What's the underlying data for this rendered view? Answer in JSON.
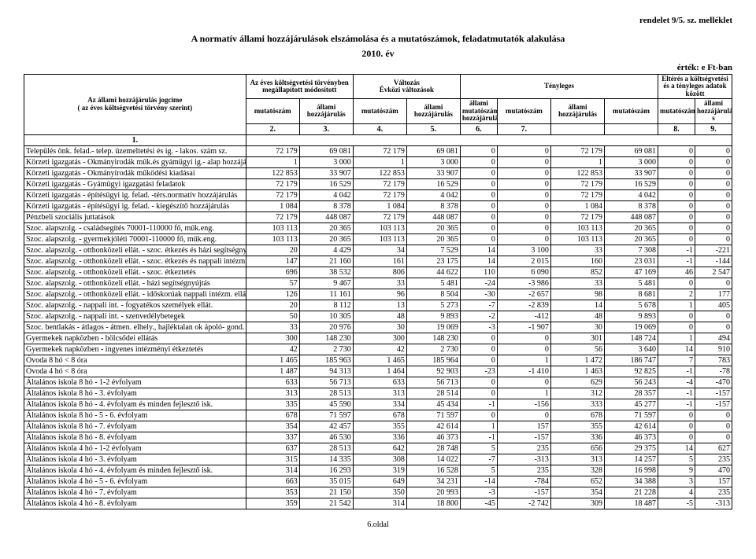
{
  "meta": {
    "top_right": "rendelet 9/5. sz. melléklet",
    "title1": "A normatív állami hozzájárulások elszámolása és a mutatószámok, feladatmutatók alakulása",
    "title2": "2010. év",
    "ertek": "érték: e Ft-ban",
    "footer": "6.oldal"
  },
  "header": {
    "left1": "Az állami hozzájárulás jogcíme",
    "left2": "( az éves költségvetési törvény szerint)",
    "left3": "1.",
    "g1": "Az éves költségvetési törvényben megállapított módosított",
    "g1a": "mutatószám",
    "g1b": "állami hozzájárulás",
    "g1na": "2.",
    "g1nb": "3.",
    "g2": "Változás",
    "g2sub": "Évközi változások",
    "g2a": "mutatószám",
    "g2b": "állami hozzájárulás",
    "g2na": "4.",
    "g2nb": "5.",
    "g3": "Tényleges",
    "g3a": "mutatószám",
    "g3sub": "állami mutatószám hozzájárulás",
    "g3b": "állami hozzájárulás",
    "g3c": "mutatószám",
    "g3na": "6.",
    "g3nb": "7.",
    "g4": "Eltérés a költségvetési és a tényleges adatok között",
    "g4a": "mutatószám",
    "g4b": "állami hozzájárulá s",
    "g4na": "8.",
    "g4nb": "9."
  },
  "rows": [
    {
      "label": "Település önk. felad.- telep. üzemeltetési és ig. - lakos. szám sz.",
      "c": [
        "72 179",
        "69 081",
        "72 179",
        "69 081",
        "0",
        "0",
        "72 179",
        "69 081",
        "0",
        "0"
      ]
    },
    {
      "label": "Körzeti igazgatás - Okmányirodák műk.és gyámügyi ig.- alap hozzájár.",
      "c": [
        "1",
        "3 000",
        "1",
        "3 000",
        "0",
        "0",
        "1",
        "3 000",
        "0",
        "0"
      ]
    },
    {
      "label": "Körzeti igazgatás - Okmányirodák működési kiadásai",
      "c": [
        "122 853",
        "33 907",
        "122 853",
        "33 907",
        "0",
        "0",
        "122 853",
        "33 907",
        "0",
        "0"
      ]
    },
    {
      "label": "Körzeti igazgatás - Gyámügyi igazgatási feladatok",
      "c": [
        "72 179",
        "16 529",
        "72 179",
        "16 529",
        "0",
        "0",
        "72 179",
        "16 529",
        "0",
        "0"
      ]
    },
    {
      "label": "Körzeti igazgatás - építésügyi ig. felad. -térs.normatív hozzájárulás",
      "c": [
        "72 179",
        "4 042",
        "72 179",
        "4 042",
        "0",
        "0",
        "72 179",
        "4 042",
        "0",
        "0"
      ]
    },
    {
      "label": "Körzeti igazgatás - építésügyi ig. felad. - kiegészítő hozzájárulás",
      "c": [
        "1 084",
        "8 378",
        "1 084",
        "8 378",
        "0",
        "0",
        "1 084",
        "8 378",
        "0",
        "0"
      ]
    },
    {
      "label": "Pénzbeli szociális juttatások",
      "c": [
        "72 179",
        "448 087",
        "72 179",
        "448 087",
        "0",
        "0",
        "72 179",
        "448 087",
        "0",
        "0"
      ]
    },
    {
      "label": "Szoc. alapszolg. - családsegítés 70001-110000 fő, műk.eng.",
      "c": [
        "103 113",
        "20 365",
        "103 113",
        "20 365",
        "0",
        "0",
        "103 113",
        "20 365",
        "0",
        "0"
      ]
    },
    {
      "label": "Szoc. alapszolg. - gyermekjóléti 70001-110000 fő, műk.eng.",
      "c": [
        "103 113",
        "20 365",
        "103 113",
        "20 365",
        "0",
        "0",
        "103 113",
        "20 365",
        "0",
        "0"
      ]
    },
    {
      "label": "Szoc. alapszolg. - otthonközeli ellát. - szoc. étkezés és házi segítségnyújtás",
      "c": [
        "20",
        "4 429",
        "34",
        "7 529",
        "14",
        "3 100",
        "33",
        "7 308",
        "-1",
        "-221"
      ]
    },
    {
      "label": "Szoc. alapszolg. - otthonközeli ellát. - szoc. étkezés és nappali intézm. ellát.",
      "c": [
        "147",
        "21 160",
        "161",
        "23 175",
        "14",
        "2 015",
        "160",
        "23 031",
        "-1",
        "-144"
      ]
    },
    {
      "label": "Szoc. alapszolg. - otthonközeli ellát. - szoc. étkeztetés",
      "c": [
        "696",
        "38 532",
        "806",
        "44 622",
        "110",
        "6 090",
        "852",
        "47 169",
        "46",
        "2 547"
      ]
    },
    {
      "label": "Szoc. alapszolg. - otthonközeli ellát. - házi segítségnyújtás",
      "c": [
        "57",
        "9 467",
        "33",
        "5 481",
        "-24",
        "-3 986",
        "33",
        "5 481",
        "0",
        "0"
      ]
    },
    {
      "label": "Szoc. alapszolg. - otthonközeli ellát. - időskorúak nappali intézm. ellát.",
      "c": [
        "126",
        "11 161",
        "96",
        "8 504",
        "-30",
        "-2 657",
        "98",
        "8 681",
        "2",
        "177"
      ]
    },
    {
      "label": "Szoc. alapszolg. - nappali int. - fogyatékos személyek ellát.",
      "c": [
        "20",
        "8 112",
        "13",
        "5 273",
        "-7",
        "-2 839",
        "14",
        "5 678",
        "1",
        "405"
      ]
    },
    {
      "label": "Szoc. alapszolg. - nappali int. - szenvedélybetegek",
      "c": [
        "50",
        "10 305",
        "48",
        "9 893",
        "-2",
        "-412",
        "48",
        "9 893",
        "0",
        "0"
      ]
    },
    {
      "label": "Szoc. bentlakás - átlagos - átmen. elhely., hajléktalan ok ápoló- gond. ellátása",
      "c": [
        "33",
        "20 976",
        "30",
        "19 069",
        "-3",
        "-1 907",
        "30",
        "19 069",
        "0",
        "0"
      ]
    },
    {
      "label": "Gyermekek napközben - bölcsődei ellátás",
      "c": [
        "300",
        "148 230",
        "300",
        "148 230",
        "0",
        "0",
        "301",
        "148 724",
        "1",
        "494"
      ]
    },
    {
      "label": "Gyermekek napközben - ingyenes intézményi étkeztetés",
      "c": [
        "42",
        "2 730",
        "42",
        "2 730",
        "0",
        "0",
        "56",
        "3 640",
        "14",
        "910"
      ]
    },
    {
      "label": "Óvoda 8 hó < 8 óra",
      "c": [
        "1 465",
        "185 963",
        "1 465",
        "185 964",
        "0",
        "1",
        "1 472",
        "186 747",
        "7",
        "783"
      ]
    },
    {
      "label": "Óvoda 4 hó < 8 óra",
      "c": [
        "1 487",
        "94 313",
        "1 464",
        "92 903",
        "-23",
        "-1 410",
        "1 463",
        "92 825",
        "-1",
        "-78"
      ]
    },
    {
      "label": "Általános iskola 8 hó - 1-2 évfolyam",
      "c": [
        "633",
        "56 713",
        "633",
        "56 713",
        "0",
        "0",
        "629",
        "56 243",
        "-4",
        "-470"
      ]
    },
    {
      "label": "Általános iskola 8 hó - 3. évfolyam",
      "c": [
        "313",
        "28 513",
        "313",
        "28 514",
        "0",
        "1",
        "312",
        "28 357",
        "-1",
        "-157"
      ]
    },
    {
      "label": "Általános iskola 8 hó - 4. évfolyam és minden fejlesztő isk.",
      "c": [
        "335",
        "45 590",
        "334",
        "45 434",
        "-1",
        "-156",
        "333",
        "45 277",
        "-1",
        "-157"
      ]
    },
    {
      "label": "Általános iskola 8 hó - 5 - 6. évfolyam",
      "c": [
        "678",
        "71 597",
        "678",
        "71 597",
        "0",
        "0",
        "678",
        "71 597",
        "0",
        "0"
      ]
    },
    {
      "label": "Általános iskola 8 hó - 7. évfolyam",
      "c": [
        "354",
        "42 457",
        "355",
        "42 614",
        "1",
        "157",
        "355",
        "42 614",
        "0",
        "0"
      ]
    },
    {
      "label": "Általános iskola 8 hó - 8. évfolyam",
      "c": [
        "337",
        "46 530",
        "336",
        "46 373",
        "-1",
        "-157",
        "336",
        "46 373",
        "0",
        "0"
      ]
    },
    {
      "label": "Általános iskola 4 hó - 1-2 évfolyam",
      "c": [
        "637",
        "28 513",
        "642",
        "28 748",
        "5",
        "235",
        "656",
        "29 375",
        "14",
        "627"
      ]
    },
    {
      "label": "Általános iskola 4 hó - 3. évfolyam",
      "c": [
        "315",
        "14 335",
        "308",
        "14 022",
        "-7",
        "-313",
        "313",
        "14 257",
        "5",
        "235"
      ]
    },
    {
      "label": "Általános iskola 4 hó - 4. évfolyam és minden fejlesztő isk.",
      "c": [
        "314",
        "16 293",
        "319",
        "16 528",
        "5",
        "235",
        "328",
        "16 998",
        "9",
        "470"
      ]
    },
    {
      "label": "Általános iskola 4 hó - 5 - 6. évfolyam",
      "c": [
        "663",
        "35 015",
        "649",
        "34 231",
        "-14",
        "-784",
        "652",
        "34 388",
        "3",
        "157"
      ]
    },
    {
      "label": "Általános iskola 4 hó - 7. évfolyam",
      "c": [
        "353",
        "21 150",
        "350",
        "20 993",
        "-3",
        "-157",
        "354",
        "21 228",
        "4",
        "235"
      ]
    },
    {
      "label": "Általános iskola 4 hó - 8. évfolyam",
      "c": [
        "359",
        "21 542",
        "314",
        "18 800",
        "-45",
        "-2 742",
        "309",
        "18 487",
        "-5",
        "-313"
      ]
    }
  ]
}
